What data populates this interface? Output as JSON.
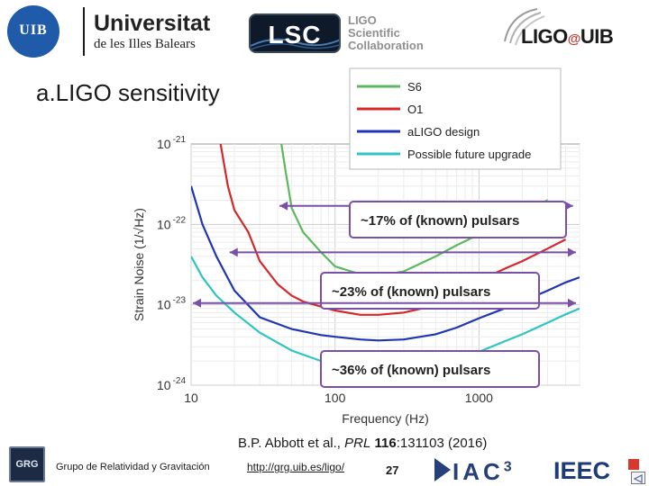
{
  "header": {
    "uib_seal_text": "UIB",
    "uib_name": "Universitat",
    "uib_sub": "de les Illes Balears",
    "lsc_box_text": "LSC",
    "lsc_words": [
      "LIGO",
      "Scientific",
      "Collaboration"
    ],
    "ligo_text": "LIGO",
    "ligo_at": "@",
    "ligo_uib": "UIB"
  },
  "slide": {
    "title": "a.LIGO sensitivity"
  },
  "chart_data": {
    "type": "line",
    "xscale": "log",
    "yscale": "log",
    "xlim": [
      10,
      5000
    ],
    "ylim": [
      1e-24,
      1e-21
    ],
    "xlabel": "Frequency (Hz)",
    "ylabel": "Strain Noise (1/√Hz)",
    "x_ticks": [
      {
        "value": 10,
        "label": "10"
      },
      {
        "value": 100,
        "label": "100"
      },
      {
        "value": 1000,
        "label": "1000"
      }
    ],
    "y_ticks": [
      {
        "value": 1e-21,
        "base": "10",
        "exp": "-21"
      },
      {
        "value": 1e-22,
        "base": "10",
        "exp": "-22"
      },
      {
        "value": 1e-23,
        "base": "10",
        "exp": "-23"
      },
      {
        "value": 1e-24,
        "base": "10",
        "exp": "-24"
      }
    ],
    "legend_position": "top-right",
    "series": [
      {
        "name": "S6",
        "color": "#5cb85c",
        "points": [
          [
            40,
            2e-21
          ],
          [
            45,
            5e-22
          ],
          [
            50,
            1.6e-22
          ],
          [
            60,
            8e-23
          ],
          [
            80,
            4.5e-23
          ],
          [
            100,
            3e-23
          ],
          [
            150,
            2.4e-23
          ],
          [
            200,
            2.3e-23
          ],
          [
            300,
            2.6e-23
          ],
          [
            500,
            4e-23
          ],
          [
            700,
            5.5e-23
          ],
          [
            1000,
            7.5e-23
          ],
          [
            1500,
            1e-22
          ],
          [
            2000,
            1.4e-22
          ],
          [
            3000,
            2e-22
          ]
        ]
      },
      {
        "name": "O1",
        "color": "#d62728",
        "points": [
          [
            15,
            2e-21
          ],
          [
            18,
            3e-22
          ],
          [
            20,
            1.5e-22
          ],
          [
            25,
            8e-23
          ],
          [
            30,
            3.5e-23
          ],
          [
            40,
            1.8e-23
          ],
          [
            50,
            1.3e-23
          ],
          [
            60,
            1.1e-23
          ],
          [
            80,
            9.5e-24
          ],
          [
            100,
            8.5e-24
          ],
          [
            150,
            7.5e-24
          ],
          [
            200,
            7.5e-24
          ],
          [
            300,
            8e-24
          ],
          [
            400,
            9e-24
          ],
          [
            500,
            1e-23
          ],
          [
            700,
            1.4e-23
          ],
          [
            1000,
            2e-23
          ],
          [
            1500,
            2.8e-23
          ],
          [
            2000,
            3.5e-23
          ],
          [
            3000,
            5e-23
          ],
          [
            4000,
            6.5e-23
          ]
        ]
      },
      {
        "name": "aLIGO design",
        "color": "#1f35b4",
        "points": [
          [
            10,
            3e-22
          ],
          [
            12,
            1e-22
          ],
          [
            15,
            4e-23
          ],
          [
            20,
            1.5e-23
          ],
          [
            30,
            7e-24
          ],
          [
            50,
            5e-24
          ],
          [
            80,
            4.2e-24
          ],
          [
            100,
            4e-24
          ],
          [
            150,
            3.7e-24
          ],
          [
            200,
            3.6e-24
          ],
          [
            300,
            3.7e-24
          ],
          [
            500,
            4.3e-24
          ],
          [
            700,
            5.2e-24
          ],
          [
            1000,
            6.8e-24
          ],
          [
            1500,
            9e-24
          ],
          [
            2000,
            1.1e-23
          ],
          [
            3000,
            1.5e-23
          ],
          [
            4000,
            1.9e-23
          ],
          [
            5000,
            2.2e-23
          ]
        ]
      },
      {
        "name": "Possible future upgrade",
        "color": "#2ec4c4",
        "points": [
          [
            10,
            4e-23
          ],
          [
            12,
            2.2e-23
          ],
          [
            15,
            1.3e-23
          ],
          [
            20,
            8e-24
          ],
          [
            30,
            4.5e-24
          ],
          [
            50,
            2.7e-24
          ],
          [
            80,
            2e-24
          ],
          [
            100,
            1.8e-24
          ],
          [
            150,
            1.6e-24
          ],
          [
            200,
            1.5e-24
          ],
          [
            300,
            1.5e-24
          ],
          [
            500,
            1.7e-24
          ],
          [
            700,
            2e-24
          ],
          [
            1000,
            2.6e-24
          ],
          [
            1500,
            3.5e-24
          ],
          [
            2000,
            4.3e-24
          ],
          [
            3000,
            6e-24
          ],
          [
            4000,
            7.6e-24
          ],
          [
            5000,
            9e-24
          ]
        ]
      }
    ],
    "annotations": [
      {
        "text": "~17% of (known) pulsars",
        "level": 1.7e-22,
        "x_range": [
          40,
          4500
        ]
      },
      {
        "text": "~23% of (known) pulsars",
        "level": 4.5e-23,
        "x_range": [
          18,
          4800
        ]
      },
      {
        "text": "~36% of (known) pulsars",
        "level": 1.05e-23,
        "x_range": [
          10,
          4800
        ]
      }
    ]
  },
  "citation": {
    "authors": "B.P. Abbott et al., ",
    "journal": "PRL",
    "volume": " 116",
    "pages": ":131103 (2016)"
  },
  "footer": {
    "grg_text": "GRG",
    "group_name": "Grupo de Relatividad y Gravitación",
    "link": "http://grg.uib.es/ligo/",
    "page_number": "27",
    "iac_text": "IAC",
    "iac_sup": "3",
    "ieec_text": "IEEC"
  }
}
